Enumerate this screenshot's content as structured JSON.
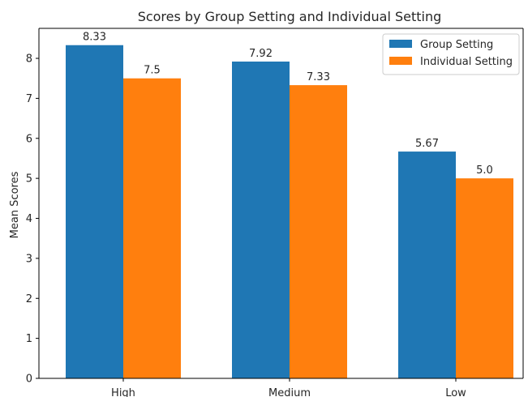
{
  "chart_data": {
    "type": "bar",
    "title": "Scores by Group Setting and Individual Setting",
    "xlabel": "",
    "ylabel": "Mean Scores",
    "categories": [
      "High",
      "Medium",
      "Low"
    ],
    "series": [
      {
        "name": "Group Setting",
        "values": [
          8.33,
          7.92,
          5.67
        ],
        "color": "#1f77b4",
        "labels": [
          "8.33",
          "7.92",
          "5.67"
        ]
      },
      {
        "name": "Individual Setting",
        "values": [
          7.5,
          7.33,
          5.0
        ],
        "color": "#ff7f0e",
        "labels": [
          "7.5",
          "7.33",
          "5.0"
        ]
      }
    ],
    "ylim": [
      0,
      8.75
    ],
    "yticks": [
      "0",
      "1",
      "2",
      "3",
      "4",
      "5",
      "6",
      "7",
      "8"
    ],
    "grid": false,
    "legend_position": "top-right"
  }
}
